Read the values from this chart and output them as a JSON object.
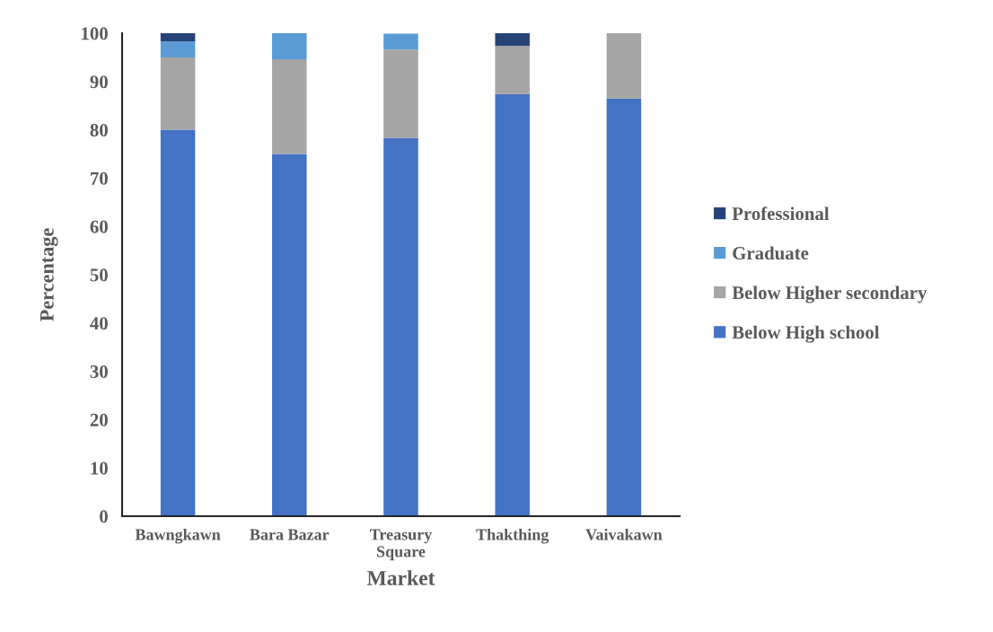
{
  "chart_data": {
    "type": "bar",
    "stacked": true,
    "xlabel": "Market",
    "ylabel": "Percentage",
    "categories": [
      "Bawngkawn",
      "Bara Bazar",
      "Treasury Square",
      "Thakthing",
      "Vaivakawn"
    ],
    "series": [
      {
        "name": "Below High school",
        "color": "#4472c4",
        "values": [
          80,
          75,
          78.3,
          87.4,
          86.5
        ]
      },
      {
        "name": "Below Higher secondary",
        "color": "#a5a5a5",
        "values": [
          15,
          19.6,
          18.3,
          10,
          13.5
        ]
      },
      {
        "name": "Graduate",
        "color": "#5b9bd5",
        "values": [
          3.3,
          5.4,
          3.3,
          null,
          null
        ]
      },
      {
        "name": "Professional",
        "color": "#264478",
        "values": [
          1.7,
          null,
          null,
          2.6,
          null
        ]
      }
    ],
    "ylim": [
      0,
      100
    ],
    "yticks": [
      0,
      10,
      20,
      30,
      40,
      50,
      60,
      70,
      80,
      90,
      100
    ],
    "grid": false,
    "legend": "right"
  }
}
